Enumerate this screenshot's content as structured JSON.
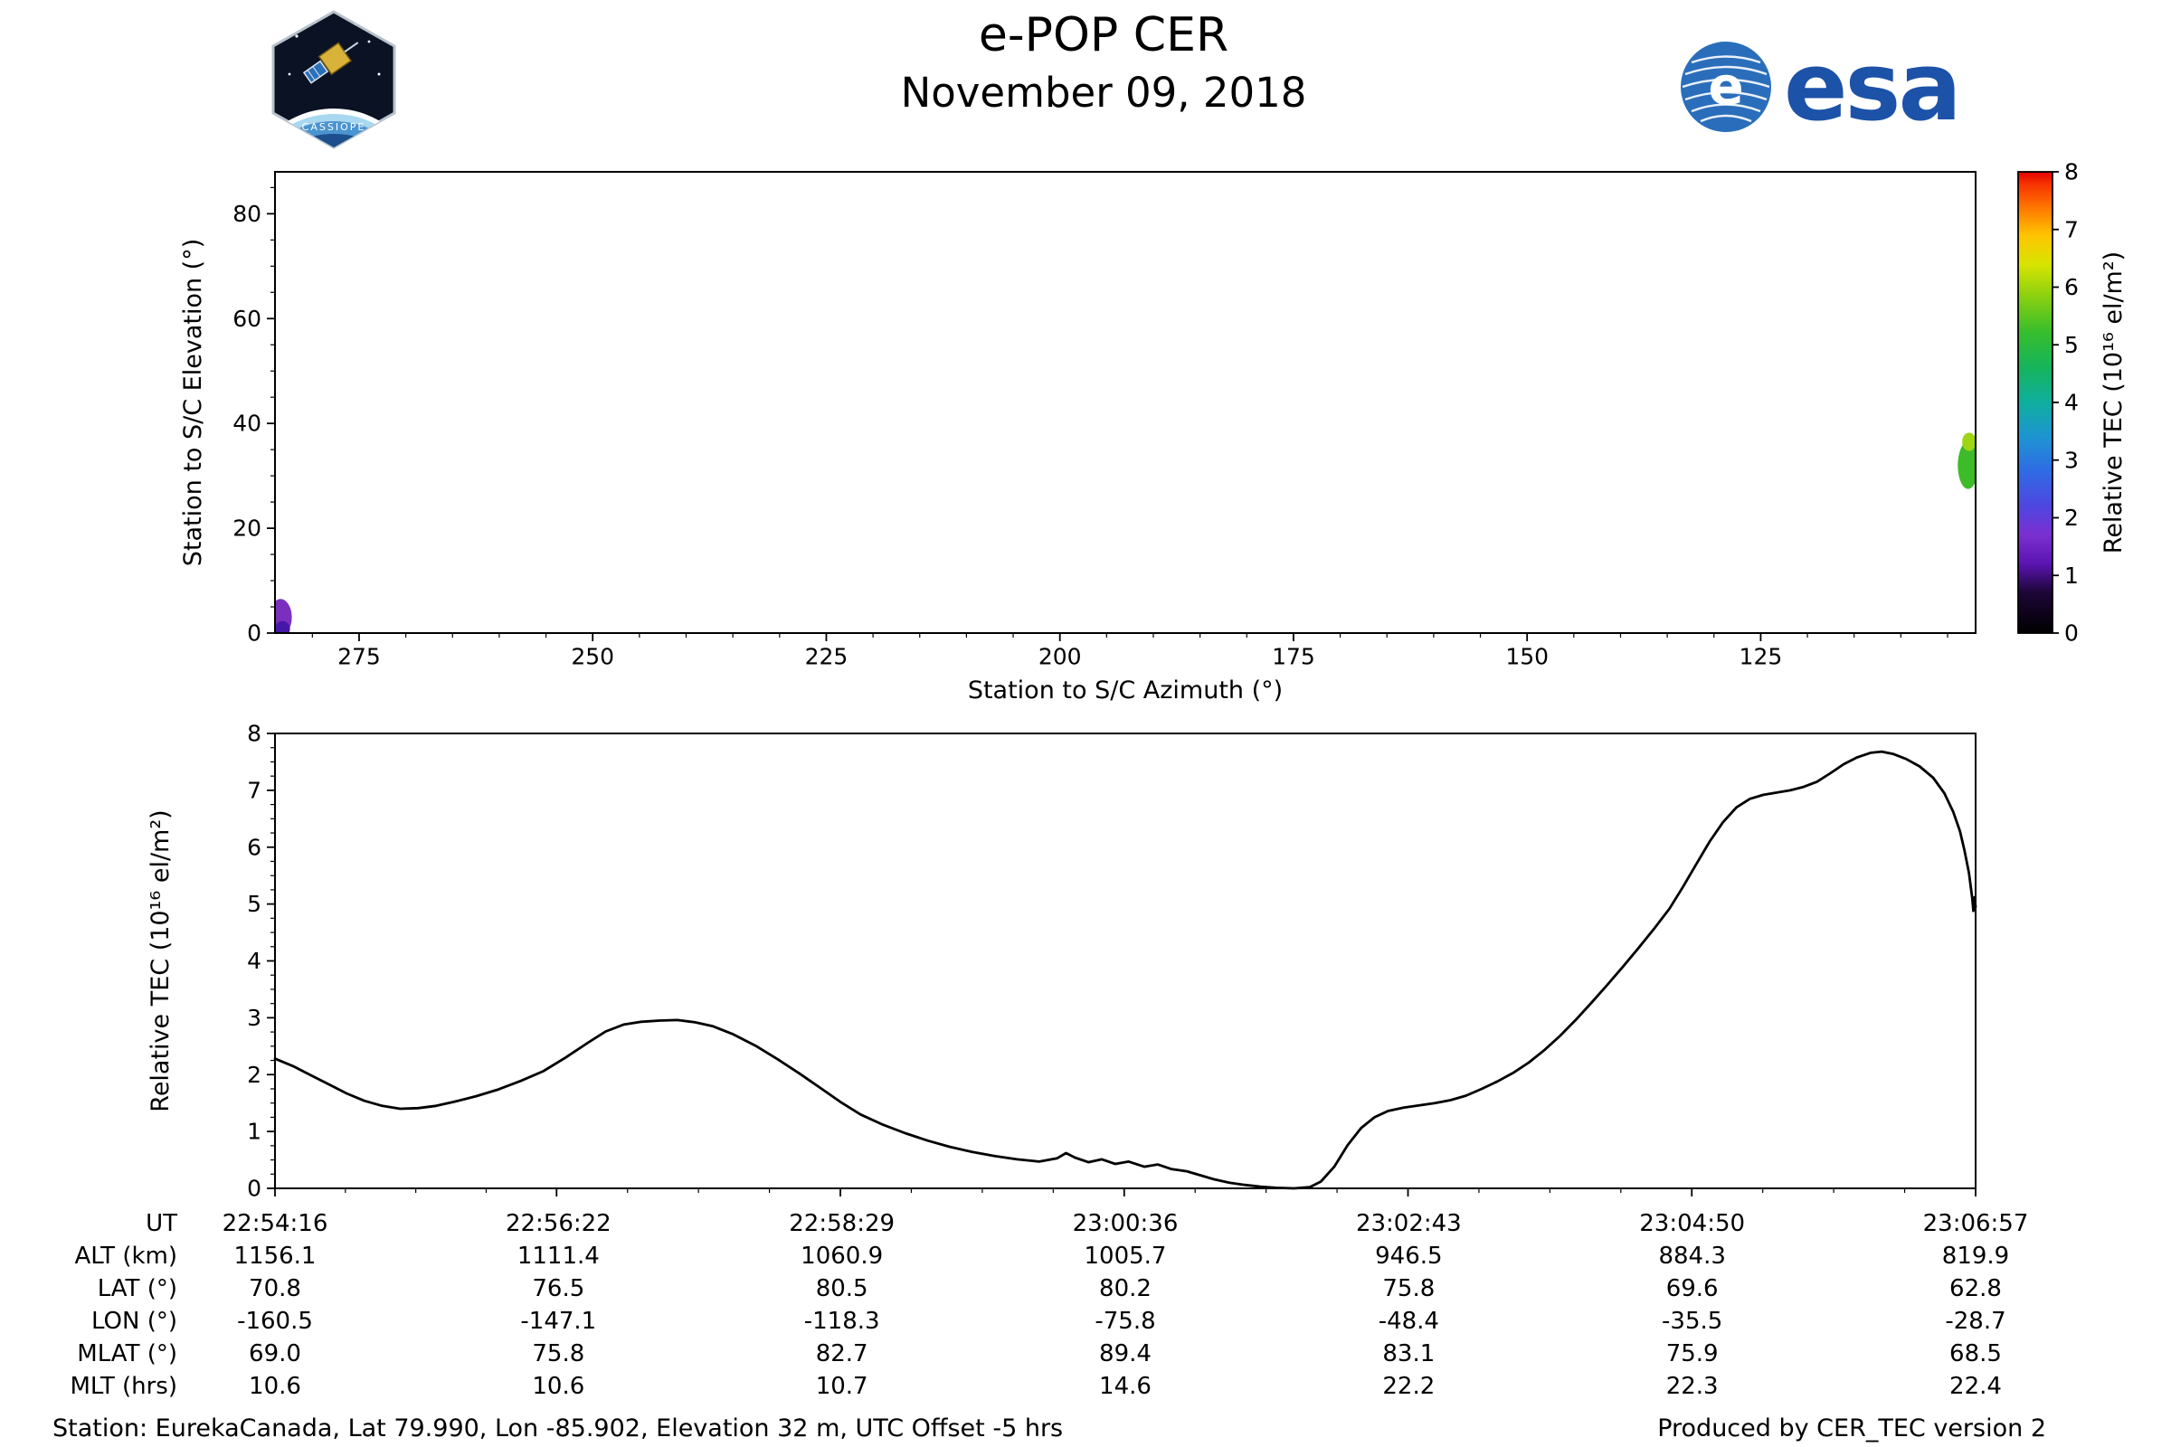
{
  "header": {
    "title": "e-POP CER",
    "date": "November 09, 2018",
    "cassiope_patch_label": "CASSIOPE",
    "esa_logo_text": "esa",
    "esa_globe_letter": "e"
  },
  "colors": {
    "curve": "#000000",
    "esa_disc_blue": "#2a6ebb",
    "esa_text_blue": "#1c52a8",
    "patch_background": "#0a1224"
  },
  "chart_data": [
    {
      "type": "scatter",
      "name": "station-to-spacecraft-sky-track",
      "xlabel": "Station to S/C Azimuth (°)",
      "ylabel": "Station to S/C Elevation (°)",
      "xlim": [
        284,
        102
      ],
      "ylim": [
        0,
        88
      ],
      "x_axis_reversed": true,
      "grid": false,
      "x_ticks": [
        275,
        250,
        225,
        200,
        175,
        150,
        125
      ],
      "y_ticks": [
        0,
        20,
        40,
        60,
        80
      ],
      "points": [
        {
          "azimuth": 283.4,
          "elevation": 3.0,
          "azimuth_span": 2.4,
          "elevation_span": 7.0,
          "relative_tec": 1.6,
          "color": "#7b2fbe"
        },
        {
          "azimuth": 283.2,
          "elevation": 0.8,
          "azimuth_span": 1.6,
          "elevation_span": 3.0,
          "relative_tec": 1.0,
          "color": "#4517a8"
        },
        {
          "azimuth": 102.8,
          "elevation": 32.0,
          "azimuth_span": 2.2,
          "elevation_span": 9.0,
          "relative_tec": 5.0,
          "color": "#3dbb28"
        },
        {
          "azimuth": 102.7,
          "elevation": 36.5,
          "azimuth_span": 1.5,
          "elevation_span": 3.5,
          "relative_tec": 5.8,
          "color": "#9ed515"
        }
      ]
    },
    {
      "type": "line",
      "name": "relative-tec-time-series",
      "ylabel": "Relative TEC (10¹⁶ el/m²)",
      "ylim": [
        0,
        8
      ],
      "y_ticks": [
        0,
        1,
        2,
        3,
        4,
        5,
        6,
        7,
        8
      ],
      "x_range_seconds": [
        0,
        761
      ],
      "x_tick_seconds": [
        0,
        126,
        253,
        380,
        507,
        634,
        761
      ],
      "x_tick_labels_ut": [
        "22:54:16",
        "22:56:22",
        "22:58:29",
        "23:00:36",
        "23:02:43",
        "23:04:50",
        "23:06:57"
      ],
      "series": [
        {
          "name": "Relative TEC",
          "color": "#000000",
          "points": [
            [
              0,
              2.28
            ],
            [
              8,
              2.15
            ],
            [
              16,
              1.99
            ],
            [
              24,
              1.83
            ],
            [
              32,
              1.67
            ],
            [
              40,
              1.54
            ],
            [
              48,
              1.45
            ],
            [
              56,
              1.4
            ],
            [
              64,
              1.41
            ],
            [
              72,
              1.45
            ],
            [
              80,
              1.52
            ],
            [
              90,
              1.62
            ],
            [
              100,
              1.74
            ],
            [
              110,
              1.89
            ],
            [
              120,
              2.06
            ],
            [
              130,
              2.3
            ],
            [
              140,
              2.56
            ],
            [
              148,
              2.76
            ],
            [
              156,
              2.88
            ],
            [
              164,
              2.93
            ],
            [
              172,
              2.95
            ],
            [
              180,
              2.96
            ],
            [
              188,
              2.92
            ],
            [
              196,
              2.85
            ],
            [
              205,
              2.71
            ],
            [
              215,
              2.51
            ],
            [
              225,
              2.27
            ],
            [
              235,
              2.01
            ],
            [
              245,
              1.74
            ],
            [
              253,
              1.52
            ],
            [
              262,
              1.3
            ],
            [
              272,
              1.12
            ],
            [
              282,
              0.97
            ],
            [
              292,
              0.84
            ],
            [
              302,
              0.73
            ],
            [
              312,
              0.64
            ],
            [
              322,
              0.57
            ],
            [
              332,
              0.51
            ],
            [
              342,
              0.47
            ],
            [
              350,
              0.53
            ],
            [
              354,
              0.62
            ],
            [
              358,
              0.54
            ],
            [
              364,
              0.46
            ],
            [
              370,
              0.51
            ],
            [
              376,
              0.43
            ],
            [
              382,
              0.47
            ],
            [
              389,
              0.38
            ],
            [
              395,
              0.42
            ],
            [
              401,
              0.34
            ],
            [
              408,
              0.3
            ],
            [
              414,
              0.23
            ],
            [
              420,
              0.16
            ],
            [
              427,
              0.1
            ],
            [
              434,
              0.06
            ],
            [
              441,
              0.03
            ],
            [
              448,
              0.01
            ],
            [
              456,
              0
            ],
            [
              463,
              0.02
            ],
            [
              468,
              0.12
            ],
            [
              474,
              0.38
            ],
            [
              480,
              0.76
            ],
            [
              486,
              1.06
            ],
            [
              492,
              1.25
            ],
            [
              498,
              1.36
            ],
            [
              505,
              1.42
            ],
            [
              512,
              1.46
            ],
            [
              519,
              1.5
            ],
            [
              526,
              1.55
            ],
            [
              533,
              1.63
            ],
            [
              540,
              1.75
            ],
            [
              547,
              1.88
            ],
            [
              554,
              2.03
            ],
            [
              561,
              2.21
            ],
            [
              568,
              2.43
            ],
            [
              575,
              2.68
            ],
            [
              582,
              2.96
            ],
            [
              589,
              3.26
            ],
            [
              596,
              3.57
            ],
            [
              603,
              3.89
            ],
            [
              610,
              4.22
            ],
            [
              617,
              4.56
            ],
            [
              624,
              4.92
            ],
            [
              630,
              5.3
            ],
            [
              636,
              5.7
            ],
            [
              642,
              6.1
            ],
            [
              648,
              6.44
            ],
            [
              654,
              6.7
            ],
            [
              660,
              6.85
            ],
            [
              666,
              6.92
            ],
            [
              672,
              6.96
            ],
            [
              678,
              7
            ],
            [
              684,
              7.06
            ],
            [
              690,
              7.15
            ],
            [
              696,
              7.3
            ],
            [
              702,
              7.46
            ],
            [
              708,
              7.58
            ],
            [
              714,
              7.66
            ],
            [
              719,
              7.68
            ],
            [
              724,
              7.64
            ],
            [
              730,
              7.55
            ],
            [
              736,
              7.42
            ],
            [
              742,
              7.22
            ],
            [
              747,
              6.95
            ],
            [
              751,
              6.62
            ],
            [
              754,
              6.28
            ],
            [
              756,
              5.95
            ],
            [
              758,
              5.55
            ],
            [
              759.5,
              5.1
            ],
            [
              760,
              4.88
            ],
            [
              760.5,
              5.12
            ],
            [
              761,
              4.95
            ]
          ]
        }
      ]
    }
  ],
  "colorbar": {
    "label": "Relative TEC (10¹⁶ el/m²)",
    "range": [
      0,
      8
    ],
    "ticks": [
      0,
      1,
      2,
      3,
      4,
      5,
      6,
      7,
      8
    ],
    "gradient_stops": [
      {
        "value": 0.0,
        "color": "#000000"
      },
      {
        "value": 0.7,
        "color": "#1c0636"
      },
      {
        "value": 1.2,
        "color": "#5a14b0"
      },
      {
        "value": 1.7,
        "color": "#7b2fd0"
      },
      {
        "value": 2.2,
        "color": "#4f46e0"
      },
      {
        "value": 2.8,
        "color": "#2f6be4"
      },
      {
        "value": 3.4,
        "color": "#1e94d2"
      },
      {
        "value": 4.0,
        "color": "#0fae9e"
      },
      {
        "value": 4.6,
        "color": "#16b45c"
      },
      {
        "value": 5.2,
        "color": "#35bd2d"
      },
      {
        "value": 5.8,
        "color": "#85cf12"
      },
      {
        "value": 6.4,
        "color": "#d8e400"
      },
      {
        "value": 6.9,
        "color": "#ffc400"
      },
      {
        "value": 7.4,
        "color": "#ff7300"
      },
      {
        "value": 7.8,
        "color": "#f63000"
      },
      {
        "value": 8.0,
        "color": "#e60000"
      }
    ]
  },
  "axis_table": {
    "rows": [
      {
        "label": "UT",
        "values": [
          "22:54:16",
          "22:56:22",
          "22:58:29",
          "23:00:36",
          "23:02:43",
          "23:04:50",
          "23:06:57"
        ]
      },
      {
        "label": "ALT (km)",
        "values": [
          "1156.1",
          "1111.4",
          "1060.9",
          "1005.7",
          "946.5",
          "884.3",
          "819.9"
        ]
      },
      {
        "label": "LAT (°)",
        "values": [
          "70.8",
          "76.5",
          "80.5",
          "80.2",
          "75.8",
          "69.6",
          "62.8"
        ]
      },
      {
        "label": "LON (°)",
        "values": [
          "-160.5",
          "-147.1",
          "-118.3",
          "-75.8",
          "-48.4",
          "-35.5",
          "-28.7"
        ]
      },
      {
        "label": "MLAT (°)",
        "values": [
          "69.0",
          "75.8",
          "82.7",
          "89.4",
          "83.1",
          "75.9",
          "68.5"
        ]
      },
      {
        "label": "MLT (hrs)",
        "values": [
          "10.6",
          "10.6",
          "10.7",
          "14.6",
          "22.2",
          "22.3",
          "22.4"
        ]
      }
    ]
  },
  "footer": {
    "station_info": "Station: EurekaCanada, Lat 79.990, Lon -85.902, Elevation 32 m, UTC Offset -5 hrs",
    "produced_by": "Produced by CER_TEC version 2"
  }
}
